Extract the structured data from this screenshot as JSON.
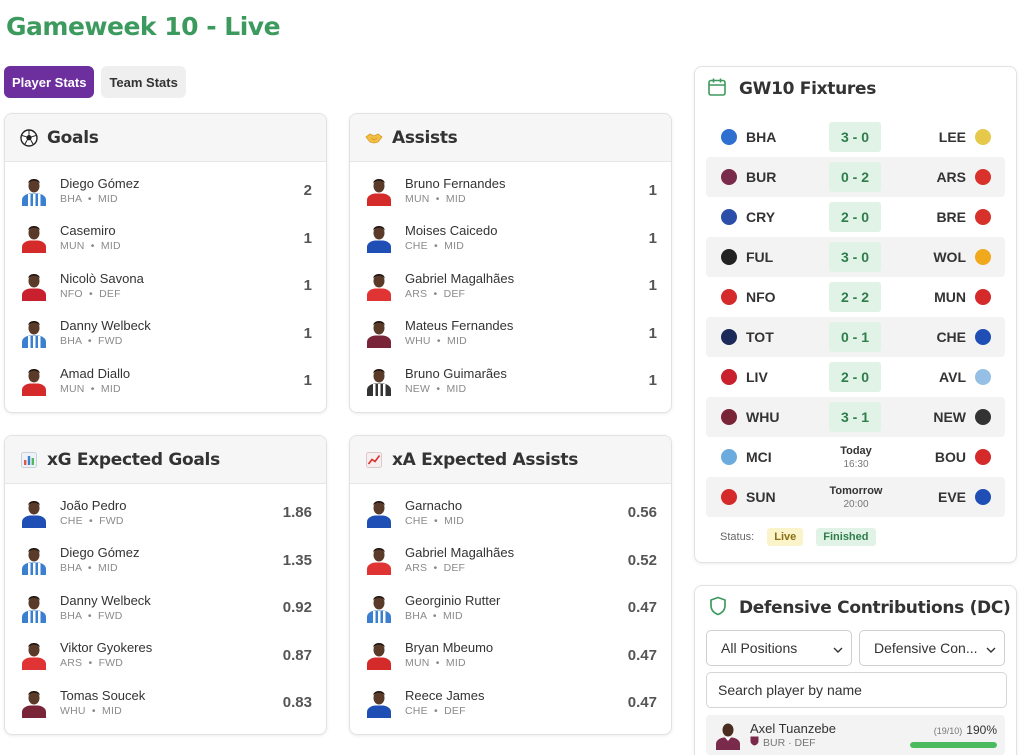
{
  "page": {
    "title": "Gameweek 10 - Live"
  },
  "tabs": [
    {
      "label": "Player Stats",
      "active": true
    },
    {
      "label": "Team Stats",
      "active": false
    }
  ],
  "goals": {
    "title": "Goals",
    "rows": [
      {
        "name": "Diego Gómez",
        "team": "BHA",
        "pos": "MID",
        "value": "2",
        "kit": "#3a7fd0",
        "stripe": true
      },
      {
        "name": "Casemiro",
        "team": "MUN",
        "pos": "MID",
        "value": "1",
        "kit": "#d52a2a",
        "stripe": false
      },
      {
        "name": "Nicolò Savona",
        "team": "NFO",
        "pos": "DEF",
        "value": "1",
        "kit": "#c8202c",
        "stripe": false
      },
      {
        "name": "Danny Welbeck",
        "team": "BHA",
        "pos": "FWD",
        "value": "1",
        "kit": "#3a7fd0",
        "stripe": true
      },
      {
        "name": "Amad Diallo",
        "team": "MUN",
        "pos": "MID",
        "value": "1",
        "kit": "#d52a2a",
        "stripe": false
      }
    ]
  },
  "assists": {
    "title": "Assists",
    "rows": [
      {
        "name": "Bruno Fernandes",
        "team": "MUN",
        "pos": "MID",
        "value": "1",
        "kit": "#d52a2a",
        "stripe": false
      },
      {
        "name": "Moises Caicedo",
        "team": "CHE",
        "pos": "MID",
        "value": "1",
        "kit": "#1f4fb5",
        "stripe": false
      },
      {
        "name": "Gabriel Magalhães",
        "team": "ARS",
        "pos": "DEF",
        "value": "1",
        "kit": "#e03434",
        "stripe": false
      },
      {
        "name": "Mateus Fernandes",
        "team": "WHU",
        "pos": "MID",
        "value": "1",
        "kit": "#7a2437",
        "stripe": false
      },
      {
        "name": "Bruno Guimarães",
        "team": "NEW",
        "pos": "MID",
        "value": "1",
        "kit": "#333333",
        "stripe": true
      }
    ]
  },
  "xg": {
    "title": "xG Expected Goals",
    "rows": [
      {
        "name": "João Pedro",
        "team": "CHE",
        "pos": "FWD",
        "value": "1.86",
        "kit": "#1f4fb5",
        "stripe": false
      },
      {
        "name": "Diego Gómez",
        "team": "BHA",
        "pos": "MID",
        "value": "1.35",
        "kit": "#3a7fd0",
        "stripe": true
      },
      {
        "name": "Danny Welbeck",
        "team": "BHA",
        "pos": "FWD",
        "value": "0.92",
        "kit": "#3a7fd0",
        "stripe": true
      },
      {
        "name": "Viktor Gyokeres",
        "team": "ARS",
        "pos": "FWD",
        "value": "0.87",
        "kit": "#e03434",
        "stripe": false
      },
      {
        "name": "Tomas Soucek",
        "team": "WHU",
        "pos": "MID",
        "value": "0.83",
        "kit": "#7a2437",
        "stripe": false
      }
    ]
  },
  "xa": {
    "title": "xA Expected Assists",
    "rows": [
      {
        "name": "Garnacho",
        "team": "CHE",
        "pos": "MID",
        "value": "0.56",
        "kit": "#1f4fb5",
        "stripe": false
      },
      {
        "name": "Gabriel Magalhães",
        "team": "ARS",
        "pos": "DEF",
        "value": "0.52",
        "kit": "#e03434",
        "stripe": false
      },
      {
        "name": "Georginio Rutter",
        "team": "BHA",
        "pos": "MID",
        "value": "0.47",
        "kit": "#3a7fd0",
        "stripe": true
      },
      {
        "name": "Bryan Mbeumo",
        "team": "MUN",
        "pos": "MID",
        "value": "0.47",
        "kit": "#d52a2a",
        "stripe": false
      },
      {
        "name": "Reece James",
        "team": "CHE",
        "pos": "DEF",
        "value": "0.47",
        "kit": "#1f4fb5",
        "stripe": false
      }
    ]
  },
  "fixtures": {
    "title": "GW10 Fixtures",
    "rows": [
      {
        "home": "BHA",
        "away": "LEE",
        "score": "3 - 0",
        "homeColor": "#2f6fcf",
        "awayColor": "#e6c84a"
      },
      {
        "home": "BUR",
        "away": "ARS",
        "score": "0 - 2",
        "homeColor": "#7a2a4a",
        "awayColor": "#d9312b"
      },
      {
        "home": "CRY",
        "away": "BRE",
        "score": "2 - 0",
        "homeColor": "#2b4fa8",
        "awayColor": "#d6322b"
      },
      {
        "home": "FUL",
        "away": "WOL",
        "score": "3 - 0",
        "homeColor": "#222222",
        "awayColor": "#f0a81c"
      },
      {
        "home": "NFO",
        "away": "MUN",
        "score": "2 - 2",
        "homeColor": "#d52a2a",
        "awayColor": "#d52a2a"
      },
      {
        "home": "TOT",
        "away": "CHE",
        "score": "0 - 1",
        "homeColor": "#1b2a5a",
        "awayColor": "#1f4fb5"
      },
      {
        "home": "LIV",
        "away": "AVL",
        "score": "2 - 0",
        "homeColor": "#c8202c",
        "awayColor": "#95bfe5"
      },
      {
        "home": "WHU",
        "away": "NEW",
        "score": "3 - 1",
        "homeColor": "#7a2437",
        "awayColor": "#333333"
      },
      {
        "home": "MCI",
        "away": "BOU",
        "day": "Today",
        "time": "16:30",
        "homeColor": "#6cabdd",
        "awayColor": "#d52a2a"
      },
      {
        "home": "SUN",
        "away": "EVE",
        "day": "Tomorrow",
        "time": "20:00",
        "homeColor": "#d52a2a",
        "awayColor": "#1f4fb5"
      }
    ],
    "status_label": "Status:",
    "status_live": "Live",
    "status_finished": "Finished"
  },
  "dc": {
    "title": "Defensive Contributions (DC)",
    "position_select": "All Positions",
    "sort_select": "Defensive Con...",
    "search_placeholder": "Search player by name",
    "player": {
      "name": "Axel Tuanzebe",
      "meta": "BUR · DEF",
      "ratio": "(19/10)",
      "percent": "190%",
      "fill": 1.0,
      "kit": "#7a2a4a"
    }
  },
  "colors": {
    "accent": "#6d2f9e",
    "title_green": "#3d9a5e",
    "score_bg": "#e0f3e6",
    "bar_green": "#4cbb5e"
  },
  "icons": {
    "goals": "soccer-ball-icon",
    "assists": "handshake-icon",
    "xg": "bar-chart-icon",
    "xa": "trend-chart-icon",
    "fixtures": "calendar-icon",
    "dc": "shield-icon"
  }
}
